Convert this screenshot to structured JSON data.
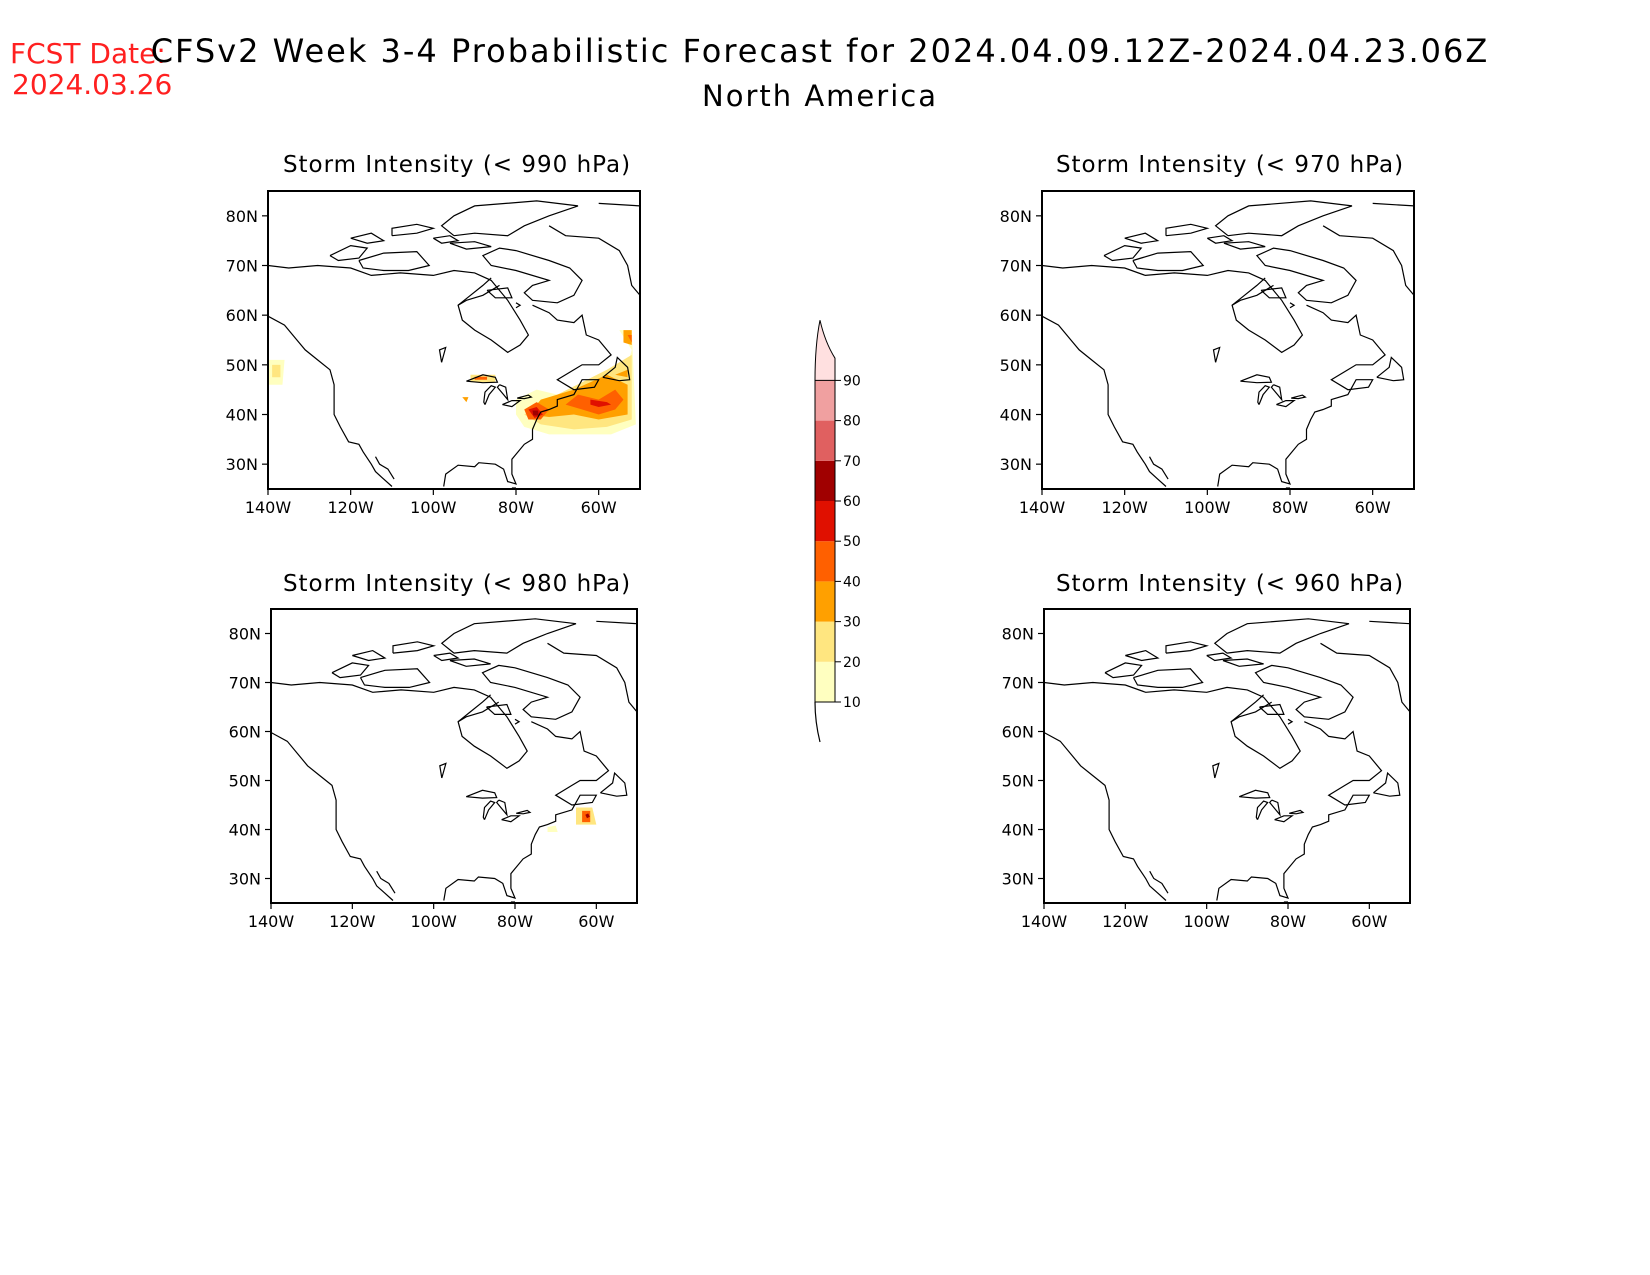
{
  "header": {
    "fcst_label": "FCST Date:",
    "fcst_date": "2024.03.26",
    "title": "CFSv2 Week 3-4 Probabilistic Forecast for 2024.04.09.12Z-2024.04.23.06Z",
    "region": "North America"
  },
  "colors": {
    "label_red": "#ff2020",
    "map_line": "#000000",
    "scale": [
      "#ffffc0",
      "#ffe680",
      "#ffa000",
      "#ff6000",
      "#e01000",
      "#a00000",
      "#e06060",
      "#f0a0a0",
      "#ffe0e0"
    ]
  },
  "colorbar": {
    "labels": [
      "10",
      "20",
      "30",
      "40",
      "50",
      "60",
      "70",
      "80",
      "90"
    ]
  },
  "panels": [
    {
      "title": "Storm Intensity (< 990 hPa)",
      "lat_labels": [
        "80N",
        "70N",
        "60N",
        "50N",
        "40N",
        "30N"
      ],
      "lon_labels": [
        "140W",
        "120W",
        "100W",
        "80W",
        "60W"
      ],
      "has_shading": true
    },
    {
      "title": "Storm Intensity (< 970 hPa)",
      "lat_labels": [
        "80N",
        "70N",
        "60N",
        "50N",
        "40N",
        "30N"
      ],
      "lon_labels": [
        "140W",
        "120W",
        "100W",
        "80W",
        "60W"
      ],
      "has_shading": false
    },
    {
      "title": "Storm Intensity (< 980 hPa)",
      "lat_labels": [
        "80N",
        "70N",
        "60N",
        "50N",
        "40N",
        "30N"
      ],
      "lon_labels": [
        "140W",
        "120W",
        "100W",
        "80W",
        "60W"
      ],
      "has_shading": true
    },
    {
      "title": "Storm Intensity (< 960 hPa)",
      "lat_labels": [
        "80N",
        "70N",
        "60N",
        "50N",
        "40N",
        "30N"
      ],
      "lon_labels": [
        "140W",
        "120W",
        "100W",
        "80W",
        "60W"
      ],
      "has_shading": false
    }
  ]
}
